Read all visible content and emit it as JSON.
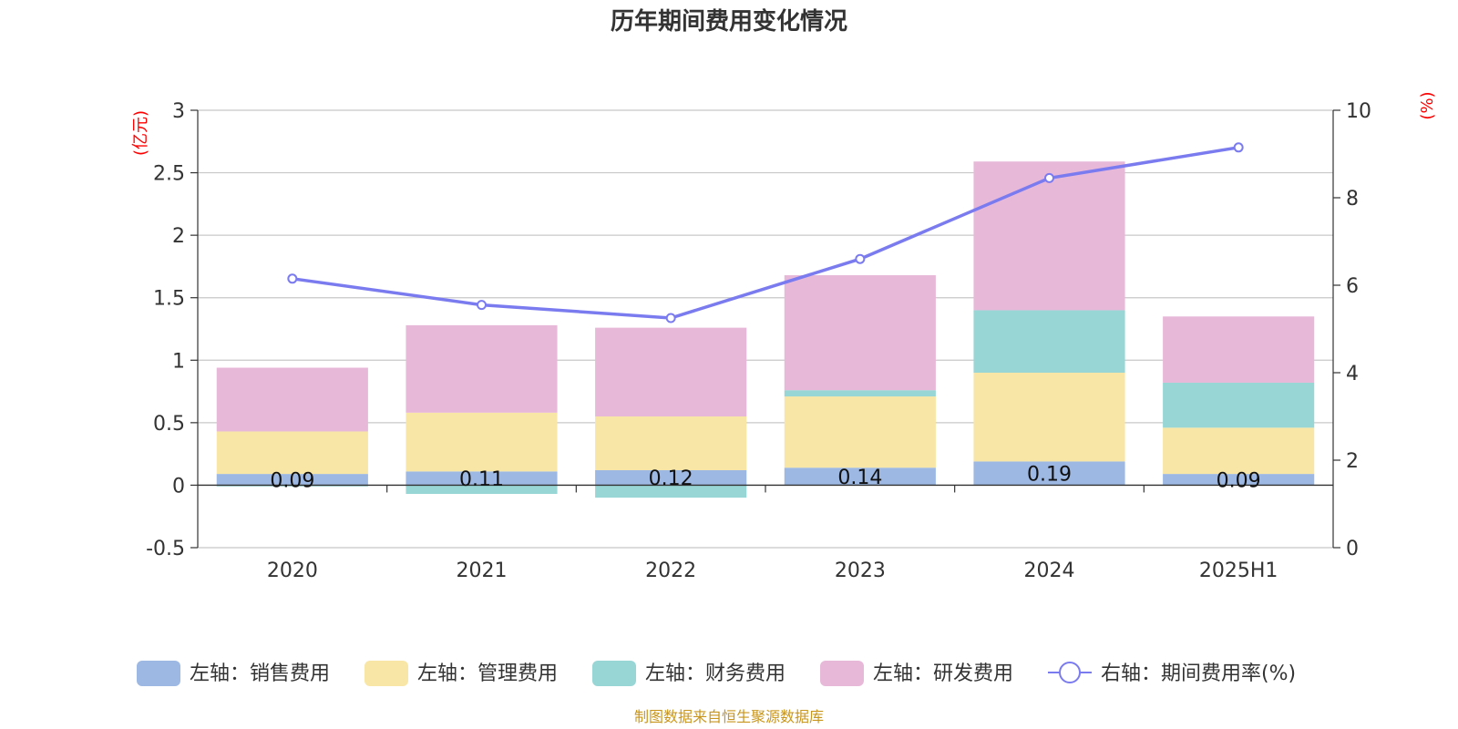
{
  "chart_data": {
    "type": "bar",
    "title": "历年期间费用变化情况",
    "categories": [
      "2020",
      "2021",
      "2022",
      "2023",
      "2024",
      "2025H1"
    ],
    "left_axis": {
      "unit": "(亿元)",
      "ylim": [
        -0.5,
        3
      ],
      "ticks": [
        "3",
        "2.5",
        "2",
        "1.5",
        "1",
        "0.5",
        "0",
        "-0.5"
      ]
    },
    "right_axis": {
      "unit": "(%)",
      "ylim": [
        0,
        10
      ],
      "ticks": [
        "10",
        "8",
        "6",
        "4",
        "2",
        "0"
      ]
    },
    "series": [
      {
        "name": "左轴：销售费用",
        "type": "bar",
        "axis": "left",
        "color": "#9db8e3",
        "values": [
          0.09,
          0.11,
          0.12,
          0.14,
          0.19,
          0.09
        ],
        "labels": [
          "0.09",
          "0.11",
          "0.12",
          "0.14",
          "0.19",
          "0.09"
        ]
      },
      {
        "name": "左轴：管理费用",
        "type": "bar",
        "axis": "left",
        "color": "#f8e6a6",
        "values": [
          0.34,
          0.47,
          0.43,
          0.57,
          0.71,
          0.37
        ]
      },
      {
        "name": "左轴：财务费用",
        "type": "bar",
        "axis": "left",
        "color": "#98d5d5",
        "values": [
          -0.01,
          -0.07,
          -0.1,
          0.05,
          0.5,
          0.36
        ]
      },
      {
        "name": "左轴：研发费用",
        "type": "bar",
        "axis": "left",
        "color": "#e8b8d9",
        "values": [
          0.51,
          0.7,
          0.71,
          0.92,
          1.19,
          0.53
        ]
      },
      {
        "name": "右轴：期间费用率(%)",
        "type": "line",
        "axis": "right",
        "color": "#7b7bf0",
        "values": [
          6.15,
          5.55,
          5.25,
          6.6,
          8.45,
          9.15
        ]
      }
    ],
    "grid": true,
    "legend": "bottom"
  },
  "source": "制图数据来自恒生聚源数据库"
}
